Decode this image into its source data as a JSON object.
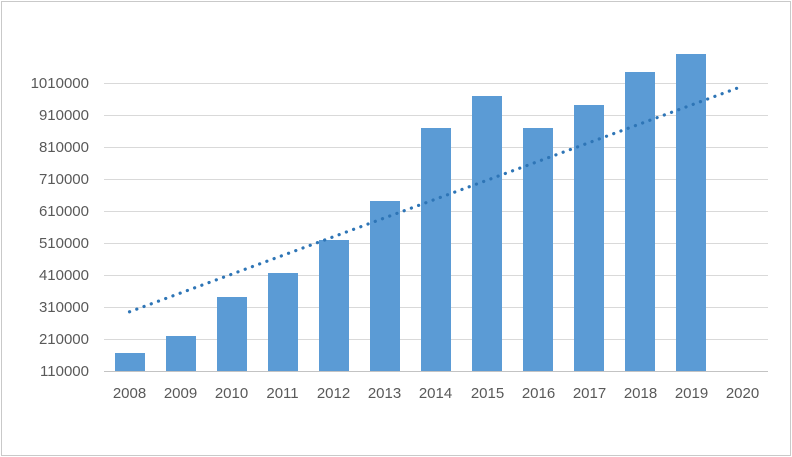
{
  "window": {
    "background": "#FFFFFF",
    "border_color": "#C9C9C9"
  },
  "chart_data": {
    "type": "bar",
    "title": "",
    "xlabel": "",
    "ylabel": "",
    "categories": [
      "2008",
      "2009",
      "2010",
      "2011",
      "2012",
      "2013",
      "2014",
      "2015",
      "2016",
      "2017",
      "2018",
      "2019",
      "2020"
    ],
    "values": [
      165000,
      220000,
      340000,
      415000,
      520000,
      640000,
      870000,
      970000,
      870000,
      940000,
      1045000,
      1100000,
      null
    ],
    "y_ticks": [
      110000,
      210000,
      310000,
      410000,
      510000,
      610000,
      710000,
      810000,
      910000,
      1010000
    ],
    "ylim": [
      110000,
      1150000
    ],
    "grid": true,
    "legend": "none",
    "trendline": {
      "type": "linear",
      "style": "dotted",
      "start_category": "2008",
      "end_category": "2020",
      "start_value": 295000,
      "end_value": 1000000
    },
    "colors": {
      "bar": "#5B9BD5",
      "trendline": "#2E75B6",
      "gridline": "#D9D9D9",
      "axis_line": "#C3C3C3",
      "label": "#595959",
      "background": "#FFFFFF"
    }
  }
}
